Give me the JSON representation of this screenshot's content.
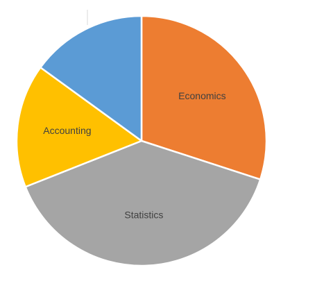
{
  "chart_data": {
    "type": "pie",
    "title": "",
    "legend": "none",
    "slices": [
      {
        "label": "Economics",
        "value": 30,
        "color": "#ED7D31"
      },
      {
        "label": "Statistics",
        "value": 39,
        "color": "#A5A5A5"
      },
      {
        "label": "Accounting",
        "value": 16,
        "color": "#FFC000"
      },
      {
        "label": "",
        "value": 15,
        "color": "#5B9BD5"
      }
    ]
  }
}
